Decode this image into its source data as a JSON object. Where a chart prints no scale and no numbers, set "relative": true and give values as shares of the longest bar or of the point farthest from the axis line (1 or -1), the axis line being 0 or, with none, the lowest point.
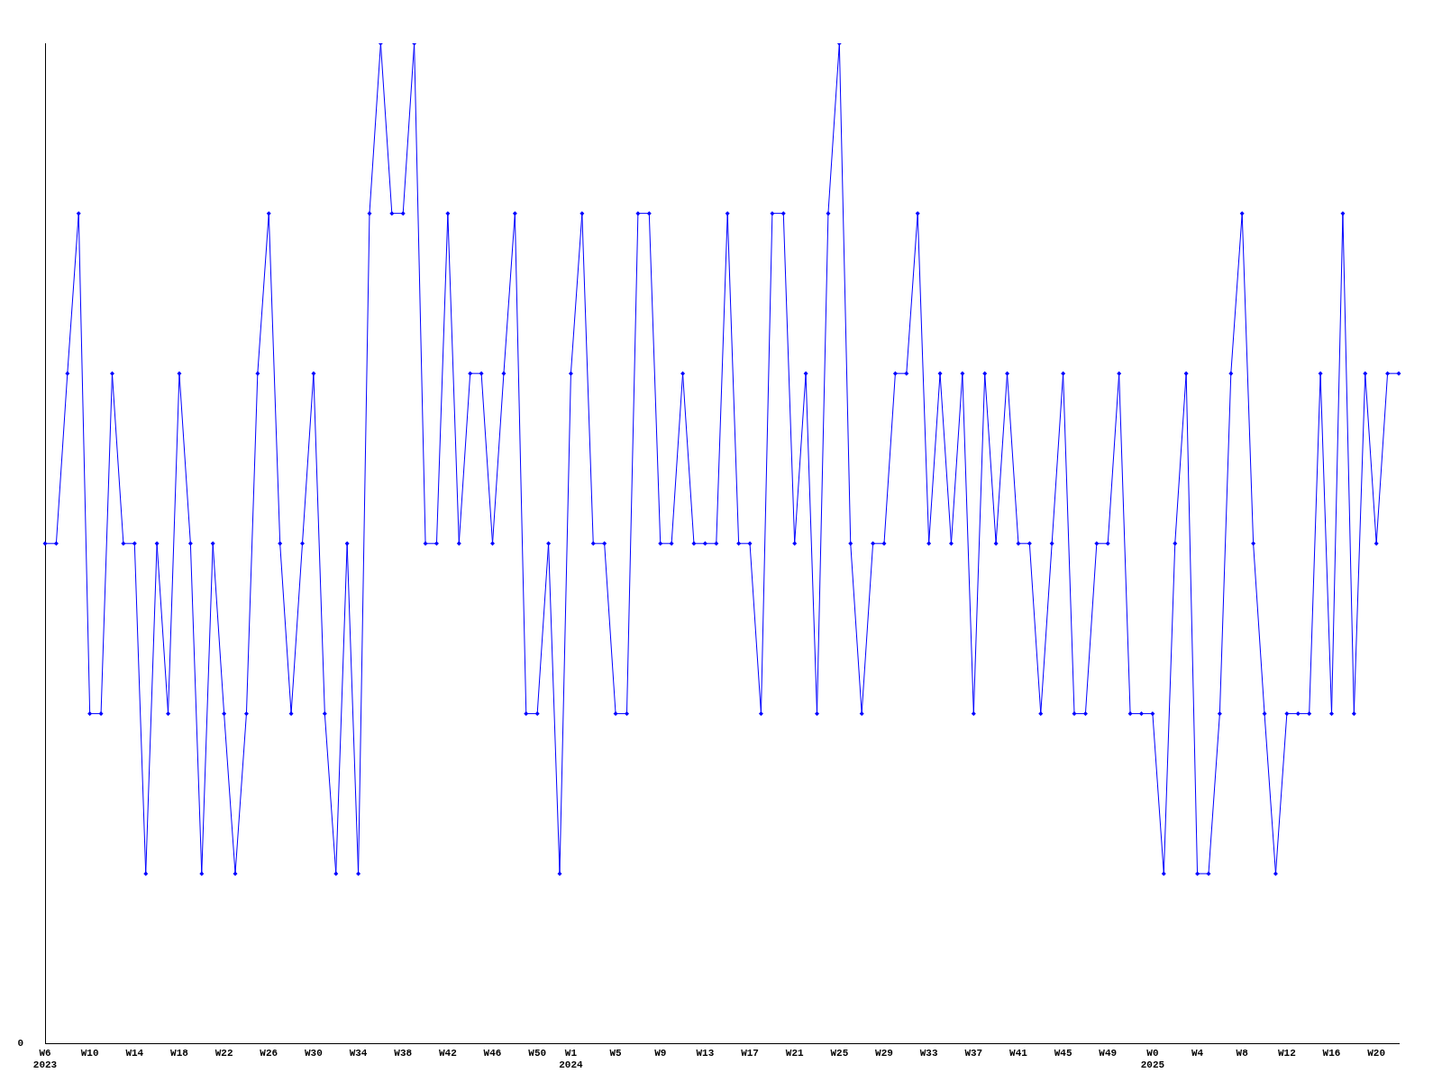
{
  "chart_data": {
    "type": "line",
    "relative": true,
    "color": "#0000ff",
    "marker": "diamond",
    "line_style": "solid",
    "grid": false,
    "legend": false,
    "annotations": [
      "0"
    ],
    "categories": [
      "W6 2023",
      null,
      null,
      null,
      "W10",
      null,
      null,
      null,
      "W14",
      null,
      null,
      null,
      "W18",
      null,
      null,
      null,
      "W22",
      null,
      null,
      null,
      "W26",
      null,
      null,
      null,
      "W30",
      null,
      null,
      null,
      "W34",
      null,
      null,
      null,
      "W38",
      null,
      null,
      null,
      "W42",
      null,
      null,
      null,
      "W46",
      null,
      null,
      null,
      "W50",
      null,
      null,
      "W1 2024",
      null,
      null,
      null,
      "W5",
      null,
      null,
      null,
      "W9",
      null,
      null,
      null,
      "W13",
      null,
      null,
      null,
      "W17",
      null,
      null,
      null,
      "W21",
      null,
      null,
      null,
      "W25",
      null,
      null,
      null,
      "W29",
      null,
      null,
      null,
      "W33",
      null,
      null,
      null,
      "W37",
      null,
      null,
      null,
      "W41",
      null,
      null,
      null,
      "W45",
      null,
      null,
      null,
      "W49",
      null,
      null,
      null,
      "W0 2025",
      null,
      null,
      null,
      "W4",
      null,
      null,
      null,
      "W8",
      null,
      null,
      null,
      "W12",
      null,
      null,
      null,
      "W16",
      null,
      null,
      null,
      "W20",
      null,
      null
    ],
    "values": [
      0.5,
      0.5,
      0.67,
      0.83,
      0.33,
      0.33,
      0.67,
      0.5,
      0.5,
      0.17,
      0.5,
      0.33,
      0.67,
      0.5,
      0.17,
      0.5,
      0.33,
      0.17,
      0.33,
      0.67,
      0.83,
      0.5,
      0.33,
      0.5,
      0.67,
      0.33,
      0.17,
      0.5,
      0.17,
      0.83,
      1,
      0.83,
      0.83,
      1,
      0.5,
      0.5,
      0.83,
      0.5,
      0.67,
      0.67,
      0.5,
      0.67,
      0.83,
      0.33,
      0.33,
      0.5,
      0.17,
      0.67,
      0.83,
      0.5,
      0.5,
      0.33,
      0.33,
      0.83,
      0.83,
      0.5,
      0.5,
      0.67,
      0.5,
      0.5,
      0.5,
      0.83,
      0.5,
      0.5,
      0.33,
      0.83,
      0.83,
      0.5,
      0.67,
      0.33,
      0.83,
      1,
      0.5,
      0.33,
      0.5,
      0.5,
      0.67,
      0.67,
      0.83,
      0.5,
      0.67,
      0.5,
      0.67,
      0.33,
      0.67,
      0.5,
      0.67,
      0.5,
      0.5,
      0.33,
      0.5,
      0.67,
      0.33,
      0.33,
      0.5,
      0.5,
      0.67,
      0.33,
      0.33,
      0.33,
      0.17,
      0.5,
      0.67,
      0.17,
      0.17,
      0.33,
      0.67,
      0.83,
      0.5,
      0.33,
      0.17,
      0.33,
      0.33,
      0.33,
      0.67,
      0.33,
      0.83,
      0.33,
      0.67,
      0.5,
      0.67,
      0.67
    ]
  }
}
